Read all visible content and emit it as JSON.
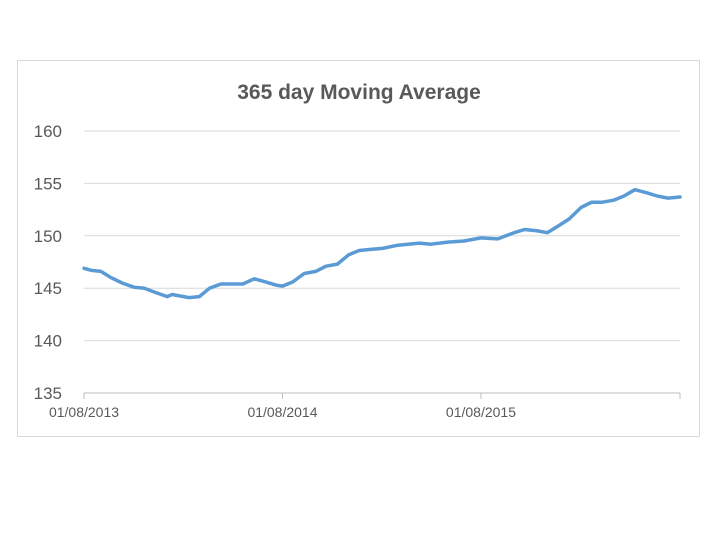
{
  "chart_data": {
    "type": "line",
    "title": "365 day Moving Average",
    "xlabel": "",
    "ylabel": "",
    "ylim": [
      135,
      160
    ],
    "yticks": [
      "135",
      "140",
      "145",
      "150",
      "155",
      "160"
    ],
    "xlim": [
      "2013-08-01",
      "2016-08-01"
    ],
    "xticks": [
      {
        "label": "01/08/2013",
        "date": "2013-08-01"
      },
      {
        "label": "01/08/2014",
        "date": "2014-08-01"
      },
      {
        "label": "01/08/2015",
        "date": "2015-08-01"
      }
    ],
    "grid": true,
    "legend": "none",
    "color": "#5b9bd5",
    "series": [
      {
        "x": [
          "2013-08-01",
          "2013-08-15",
          "2013-09-01",
          "2013-09-20",
          "2013-10-10",
          "2013-11-01",
          "2013-11-20",
          "2013-12-10",
          "2014-01-01",
          "2014-01-10",
          "2014-01-20",
          "2014-02-10",
          "2014-03-01",
          "2014-03-20",
          "2014-04-10",
          "2014-05-01",
          "2014-05-20",
          "2014-06-10",
          "2014-07-01",
          "2014-07-20",
          "2014-08-01",
          "2014-08-20",
          "2014-09-10",
          "2014-10-01",
          "2014-10-20",
          "2014-11-10",
          "2014-12-01",
          "2014-12-20",
          "2015-01-10",
          "2015-02-01",
          "2015-03-01",
          "2015-03-20",
          "2015-04-10",
          "2015-05-01",
          "2015-06-01",
          "2015-07-01",
          "2015-08-01",
          "2015-09-01",
          "2015-10-01",
          "2015-10-20",
          "2015-11-10",
          "2015-12-01",
          "2015-12-20",
          "2016-01-10",
          "2016-02-01",
          "2016-02-20",
          "2016-03-10",
          "2016-04-01",
          "2016-04-20",
          "2016-05-10",
          "2016-06-01",
          "2016-06-20",
          "2016-07-10",
          "2016-08-01"
        ],
        "y": [
          146.9,
          146.7,
          146.6,
          146.0,
          145.5,
          145.1,
          145.0,
          144.6,
          144.2,
          144.4,
          144.3,
          144.1,
          144.2,
          145.0,
          145.4,
          145.4,
          145.4,
          145.9,
          145.6,
          145.3,
          145.2,
          145.6,
          146.4,
          146.6,
          147.1,
          147.3,
          148.2,
          148.6,
          148.7,
          148.8,
          149.1,
          149.2,
          149.3,
          149.2,
          149.4,
          149.5,
          149.8,
          149.7,
          150.3,
          150.6,
          150.5,
          150.3,
          150.9,
          151.6,
          152.7,
          153.2,
          153.2,
          153.4,
          153.8,
          154.4,
          154.1,
          153.8,
          153.6,
          153.7
        ]
      }
    ]
  }
}
